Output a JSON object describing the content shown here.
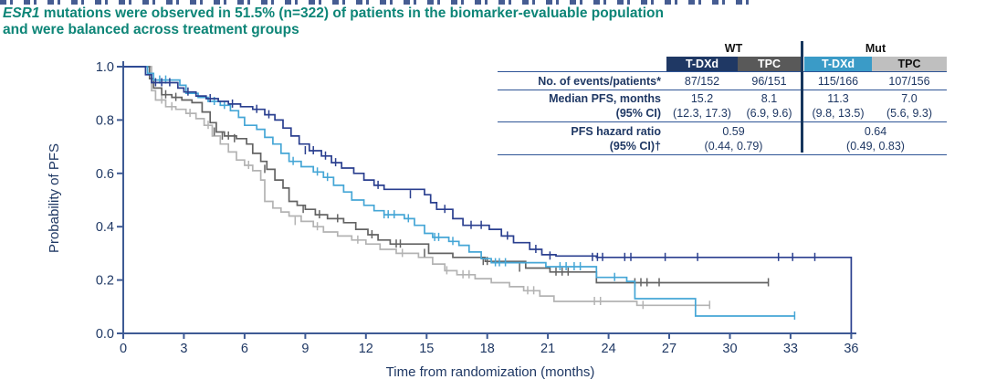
{
  "title": {
    "gene": "ESR1",
    "line1_rest": " mutations were observed in 51.5% (n=322) of patients in the biomarker-evaluable population",
    "line2": "and were balanced across treatment groups",
    "color": "#0d8577"
  },
  "table": {
    "group_headers": [
      "WT",
      "Mut"
    ],
    "col_headers": [
      "T-DXd",
      "TPC",
      "T-DXd",
      "TPC"
    ],
    "col_colors": [
      "#1f3864",
      "#595959",
      "#3a9bc7",
      "#bfbfbf"
    ],
    "rows": {
      "events": {
        "label": "No. of events/patients*",
        "values": [
          "87/152",
          "96/151",
          "115/166",
          "107/156"
        ]
      },
      "median": {
        "label_line1": "Median PFS, months",
        "label_line2": "(95% CI)",
        "values": [
          "15.2",
          "8.1",
          "11.3",
          "7.0"
        ],
        "cis": [
          "(12.3, 17.3)",
          "(6.9, 9.6)",
          "(9.8, 13.5)",
          "(5.6, 9.3)"
        ]
      },
      "hazard": {
        "label_line1": "PFS hazard ratio",
        "label_line2": "(95% CI)†",
        "values": [
          "0.59",
          "0.64"
        ],
        "cis": [
          "(0.44, 0.79)",
          "(0.49, 0.83)"
        ]
      }
    }
  },
  "colors": {
    "axis": "#3e5a94",
    "text_navy": "#1f3864",
    "title_teal": "#0d8577"
  },
  "chart_data": {
    "type": "line",
    "subtype": "kaplan-meier-step",
    "title": "",
    "xlabel": "Time from randomization (months)",
    "ylabel": "Probability of PFS",
    "xlim": [
      0,
      36
    ],
    "ylim": [
      0.0,
      1.0
    ],
    "xticks": [
      0,
      3,
      6,
      9,
      12,
      15,
      18,
      21,
      24,
      27,
      30,
      33,
      36
    ],
    "yticks": [
      0.0,
      0.2,
      0.4,
      0.6,
      0.8,
      1.0
    ],
    "grid": false,
    "legend_position": "none",
    "series": [
      {
        "name": "mut-tpc",
        "label": "Mut TPC",
        "color": "#b3b3b3",
        "end_month": 29.0,
        "drop_to_zero": false,
        "steps": [
          [
            1.4,
            0.91
          ],
          [
            1.6,
            0.875
          ],
          [
            2.1,
            0.85
          ],
          [
            2.6,
            0.84
          ],
          [
            3.1,
            0.825
          ],
          [
            3.6,
            0.805
          ],
          [
            4.0,
            0.78
          ],
          [
            4.4,
            0.74
          ],
          [
            4.8,
            0.71
          ],
          [
            5.2,
            0.68
          ],
          [
            5.6,
            0.65
          ],
          [
            6.0,
            0.63
          ],
          [
            6.4,
            0.61
          ],
          [
            6.8,
            0.575
          ],
          [
            7.0,
            0.495
          ],
          [
            7.4,
            0.47
          ],
          [
            7.8,
            0.455
          ],
          [
            8.2,
            0.44
          ],
          [
            8.8,
            0.42
          ],
          [
            9.4,
            0.4
          ],
          [
            9.9,
            0.38
          ],
          [
            10.6,
            0.365
          ],
          [
            11.3,
            0.35
          ],
          [
            12.0,
            0.335
          ],
          [
            12.7,
            0.315
          ],
          [
            13.5,
            0.3
          ],
          [
            14.6,
            0.285
          ],
          [
            15.3,
            0.26
          ],
          [
            15.9,
            0.235
          ],
          [
            16.5,
            0.22
          ],
          [
            17.4,
            0.205
          ],
          [
            18.2,
            0.19
          ],
          [
            19.1,
            0.175
          ],
          [
            19.8,
            0.16
          ],
          [
            20.6,
            0.14
          ],
          [
            21.3,
            0.12
          ],
          [
            25.4,
            0.105
          ]
        ],
        "censors": [
          [
            1.9,
            0.875
          ],
          [
            2.4,
            0.85
          ],
          [
            3.3,
            0.825
          ],
          [
            4.2,
            0.78
          ],
          [
            6.2,
            0.63
          ],
          [
            8.5,
            0.42
          ],
          [
            9.6,
            0.4
          ],
          [
            11.6,
            0.35
          ],
          [
            13.8,
            0.3
          ],
          [
            16.0,
            0.235
          ],
          [
            16.8,
            0.22
          ],
          [
            17.1,
            0.22
          ],
          [
            20.0,
            0.16
          ],
          [
            20.3,
            0.16
          ],
          [
            23.3,
            0.12
          ],
          [
            23.6,
            0.12
          ],
          [
            25.7,
            0.105
          ],
          [
            29.0,
            0.105
          ]
        ]
      },
      {
        "name": "wt-tpc",
        "label": "WT TPC",
        "color": "#636363",
        "end_month": 31.9,
        "drop_to_zero": false,
        "steps": [
          [
            1.3,
            0.955
          ],
          [
            1.5,
            0.92
          ],
          [
            1.9,
            0.895
          ],
          [
            2.4,
            0.885
          ],
          [
            2.9,
            0.875
          ],
          [
            3.4,
            0.865
          ],
          [
            3.9,
            0.83
          ],
          [
            4.3,
            0.79
          ],
          [
            4.6,
            0.755
          ],
          [
            5.0,
            0.74
          ],
          [
            5.6,
            0.73
          ],
          [
            6.1,
            0.71
          ],
          [
            6.4,
            0.675
          ],
          [
            6.8,
            0.645
          ],
          [
            7.1,
            0.615
          ],
          [
            7.5,
            0.575
          ],
          [
            7.9,
            0.545
          ],
          [
            8.2,
            0.495
          ],
          [
            8.6,
            0.48
          ],
          [
            9.0,
            0.465
          ],
          [
            9.5,
            0.445
          ],
          [
            10.1,
            0.43
          ],
          [
            10.9,
            0.415
          ],
          [
            11.5,
            0.39
          ],
          [
            12.1,
            0.37
          ],
          [
            12.6,
            0.35
          ],
          [
            13.2,
            0.335
          ],
          [
            15.1,
            0.3
          ],
          [
            16.3,
            0.285
          ],
          [
            17.9,
            0.27
          ],
          [
            19.9,
            0.245
          ],
          [
            21.1,
            0.23
          ],
          [
            23.4,
            0.19
          ]
        ],
        "censors": [
          [
            2.1,
            0.895
          ],
          [
            2.6,
            0.885
          ],
          [
            4.5,
            0.755
          ],
          [
            4.9,
            0.74
          ],
          [
            5.2,
            0.74
          ],
          [
            5.5,
            0.73
          ],
          [
            7.0,
            0.615
          ],
          [
            8.9,
            0.465
          ],
          [
            9.7,
            0.445
          ],
          [
            10.6,
            0.43
          ],
          [
            12.3,
            0.37
          ],
          [
            13.5,
            0.335
          ],
          [
            13.7,
            0.335
          ],
          [
            14.9,
            0.3
          ],
          [
            17.8,
            0.27
          ],
          [
            18.0,
            0.27
          ],
          [
            19.6,
            0.245
          ],
          [
            21.4,
            0.23
          ],
          [
            21.7,
            0.23
          ],
          [
            22.0,
            0.23
          ],
          [
            25.3,
            0.19
          ],
          [
            25.6,
            0.19
          ],
          [
            25.9,
            0.19
          ],
          [
            26.5,
            0.19
          ],
          [
            31.9,
            0.19
          ]
        ]
      },
      {
        "name": "mut-tdxd",
        "label": "Mut T-DXd",
        "color": "#45a6d6",
        "end_month": 33.2,
        "drop_to_zero": false,
        "steps": [
          [
            1.2,
            0.975
          ],
          [
            1.5,
            0.95
          ],
          [
            2.8,
            0.93
          ],
          [
            3.1,
            0.9
          ],
          [
            3.7,
            0.885
          ],
          [
            4.2,
            0.87
          ],
          [
            4.8,
            0.855
          ],
          [
            5.3,
            0.835
          ],
          [
            5.7,
            0.81
          ],
          [
            6.0,
            0.78
          ],
          [
            6.6,
            0.765
          ],
          [
            7.0,
            0.735
          ],
          [
            7.4,
            0.71
          ],
          [
            7.8,
            0.675
          ],
          [
            8.2,
            0.645
          ],
          [
            8.8,
            0.625
          ],
          [
            9.4,
            0.605
          ],
          [
            9.9,
            0.585
          ],
          [
            10.4,
            0.555
          ],
          [
            10.9,
            0.53
          ],
          [
            11.3,
            0.5
          ],
          [
            11.9,
            0.48
          ],
          [
            12.4,
            0.46
          ],
          [
            12.9,
            0.445
          ],
          [
            13.9,
            0.43
          ],
          [
            14.4,
            0.405
          ],
          [
            14.9,
            0.375
          ],
          [
            15.3,
            0.36
          ],
          [
            16.1,
            0.345
          ],
          [
            16.6,
            0.33
          ],
          [
            17.1,
            0.305
          ],
          [
            17.7,
            0.28
          ],
          [
            18.2,
            0.265
          ],
          [
            20.9,
            0.25
          ],
          [
            23.4,
            0.21
          ],
          [
            24.9,
            0.195
          ],
          [
            25.3,
            0.13
          ],
          [
            28.3,
            0.065
          ]
        ],
        "censors": [
          [
            1.8,
            0.95
          ],
          [
            2.1,
            0.95
          ],
          [
            4.5,
            0.87
          ],
          [
            5.0,
            0.855
          ],
          [
            8.4,
            0.645
          ],
          [
            9.6,
            0.605
          ],
          [
            10.1,
            0.585
          ],
          [
            12.9,
            0.445
          ],
          [
            13.1,
            0.445
          ],
          [
            13.4,
            0.445
          ],
          [
            14.1,
            0.43
          ],
          [
            15.4,
            0.36
          ],
          [
            15.6,
            0.36
          ],
          [
            16.3,
            0.345
          ],
          [
            18.4,
            0.265
          ],
          [
            18.6,
            0.265
          ],
          [
            18.9,
            0.265
          ],
          [
            21.6,
            0.25
          ],
          [
            21.9,
            0.25
          ],
          [
            22.3,
            0.25
          ],
          [
            22.6,
            0.25
          ],
          [
            24.3,
            0.21
          ],
          [
            33.2,
            0.065
          ]
        ]
      },
      {
        "name": "wt-tdxd",
        "label": "WT T-DXd",
        "color": "#2a3f8f",
        "end_month": 36.0,
        "drop_to_zero": true,
        "steps": [
          [
            1.1,
            0.97
          ],
          [
            1.4,
            0.94
          ],
          [
            2.7,
            0.92
          ],
          [
            3.0,
            0.905
          ],
          [
            3.6,
            0.89
          ],
          [
            4.1,
            0.88
          ],
          [
            4.7,
            0.87
          ],
          [
            5.2,
            0.86
          ],
          [
            5.8,
            0.85
          ],
          [
            6.4,
            0.84
          ],
          [
            7.0,
            0.82
          ],
          [
            7.5,
            0.8
          ],
          [
            7.9,
            0.77
          ],
          [
            8.3,
            0.74
          ],
          [
            8.7,
            0.71
          ],
          [
            9.2,
            0.685
          ],
          [
            9.8,
            0.665
          ],
          [
            10.3,
            0.64
          ],
          [
            10.8,
            0.62
          ],
          [
            11.4,
            0.6
          ],
          [
            11.9,
            0.575
          ],
          [
            12.4,
            0.555
          ],
          [
            12.9,
            0.54
          ],
          [
            14.9,
            0.52
          ],
          [
            15.2,
            0.49
          ],
          [
            15.5,
            0.465
          ],
          [
            16.3,
            0.43
          ],
          [
            16.8,
            0.405
          ],
          [
            18.1,
            0.39
          ],
          [
            18.7,
            0.365
          ],
          [
            19.3,
            0.34
          ],
          [
            20.1,
            0.315
          ],
          [
            20.7,
            0.295
          ],
          [
            21.4,
            0.29
          ],
          [
            23.4,
            0.285
          ]
        ],
        "censors": [
          [
            1.6,
            0.94
          ],
          [
            1.9,
            0.94
          ],
          [
            2.3,
            0.94
          ],
          [
            3.2,
            0.905
          ],
          [
            4.3,
            0.88
          ],
          [
            5.4,
            0.86
          ],
          [
            6.6,
            0.84
          ],
          [
            7.2,
            0.82
          ],
          [
            9.0,
            0.685
          ],
          [
            9.4,
            0.685
          ],
          [
            10.0,
            0.665
          ],
          [
            10.5,
            0.64
          ],
          [
            12.6,
            0.555
          ],
          [
            14.2,
            0.52
          ],
          [
            15.9,
            0.465
          ],
          [
            17.2,
            0.405
          ],
          [
            17.7,
            0.405
          ],
          [
            19.0,
            0.365
          ],
          [
            20.4,
            0.315
          ],
          [
            21.1,
            0.29
          ],
          [
            23.2,
            0.285
          ],
          [
            23.45,
            0.285
          ],
          [
            23.7,
            0.285
          ],
          [
            24.8,
            0.285
          ],
          [
            25.1,
            0.285
          ],
          [
            26.8,
            0.285
          ],
          [
            28.4,
            0.285
          ],
          [
            32.4,
            0.285
          ],
          [
            33.1,
            0.285
          ],
          [
            34.2,
            0.285
          ]
        ]
      }
    ]
  }
}
